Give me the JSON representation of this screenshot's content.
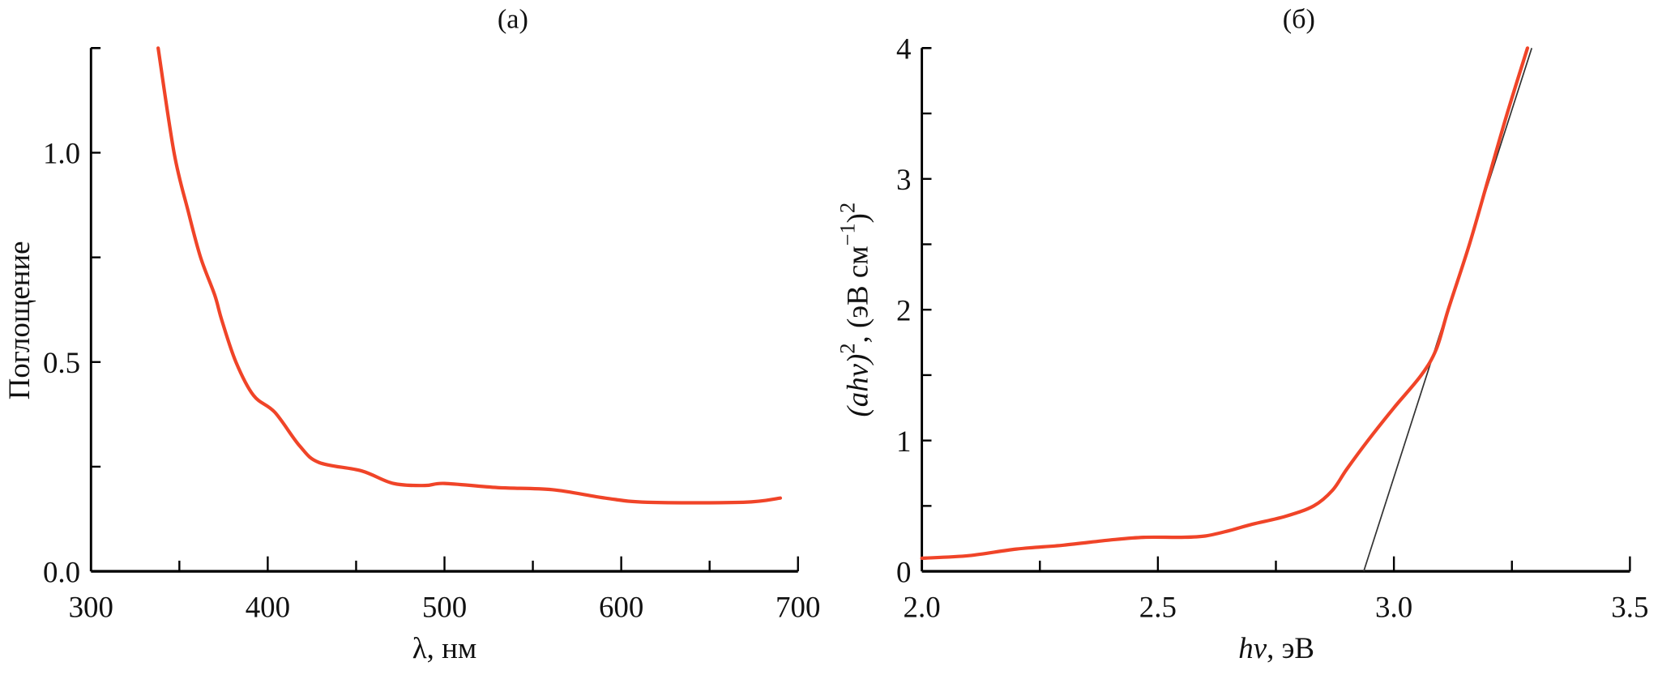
{
  "chart_data": [
    {
      "type": "line",
      "title": "(a)",
      "xlabel": "λ, нм",
      "ylabel": "Поглощение",
      "xlim": [
        300,
        700
      ],
      "ylim": [
        0,
        1.25
      ],
      "xticks": [
        "300",
        "400",
        "500",
        "600",
        "700"
      ],
      "yticks": [
        "0.0",
        "0.5",
        "1.0"
      ],
      "grid": false,
      "color": "#f04428",
      "series": [
        {
          "x": [
            338,
            347,
            355,
            362,
            370,
            374,
            382,
            392,
            404,
            418,
            429,
            453,
            471,
            489,
            500,
            530,
            561,
            591,
            615,
            669,
            690
          ],
          "y": [
            1.25,
            1.0,
            0.86,
            0.75,
            0.66,
            0.6,
            0.5,
            0.42,
            0.38,
            0.3,
            0.26,
            0.24,
            0.21,
            0.205,
            0.21,
            0.2,
            0.195,
            0.175,
            0.165,
            0.165,
            0.175
          ]
        }
      ]
    },
    {
      "type": "line",
      "title": "(б)",
      "xlabel_italic": "hν",
      "xlabel_rest": ", эВ",
      "ylabel_main": "(ahν)",
      "ylabel_sup1": "2",
      "ylabel_mid": ", (эВ см",
      "ylabel_sup2": "−1",
      "ylabel_end": ")",
      "ylabel_sup3": "2",
      "xlim": [
        2.0,
        3.5
      ],
      "ylim": [
        0,
        4
      ],
      "xticks": [
        "2.0",
        "2.5",
        "3.0",
        "3.5"
      ],
      "yticks": [
        "0",
        "1",
        "2",
        "3",
        "4"
      ],
      "grid": false,
      "color": "#f04428",
      "fit_line_color": "#333333",
      "series": [
        {
          "x": [
            2.0,
            2.1,
            2.2,
            2.3,
            2.4,
            2.47,
            2.55,
            2.6,
            2.65,
            2.7,
            2.77,
            2.83,
            2.87,
            2.9,
            2.945,
            3.0,
            3.058,
            3.09,
            3.115,
            3.16,
            3.2,
            3.24,
            3.283
          ],
          "y": [
            0.1,
            0.12,
            0.17,
            0.2,
            0.24,
            0.26,
            0.26,
            0.27,
            0.31,
            0.36,
            0.42,
            0.5,
            0.62,
            0.78,
            1.0,
            1.25,
            1.5,
            1.7,
            2.0,
            2.5,
            3.0,
            3.5,
            4.0
          ]
        }
      ],
      "fit_line": {
        "x": [
          2.936,
          3.292
        ],
        "y": [
          0,
          4
        ]
      }
    }
  ]
}
